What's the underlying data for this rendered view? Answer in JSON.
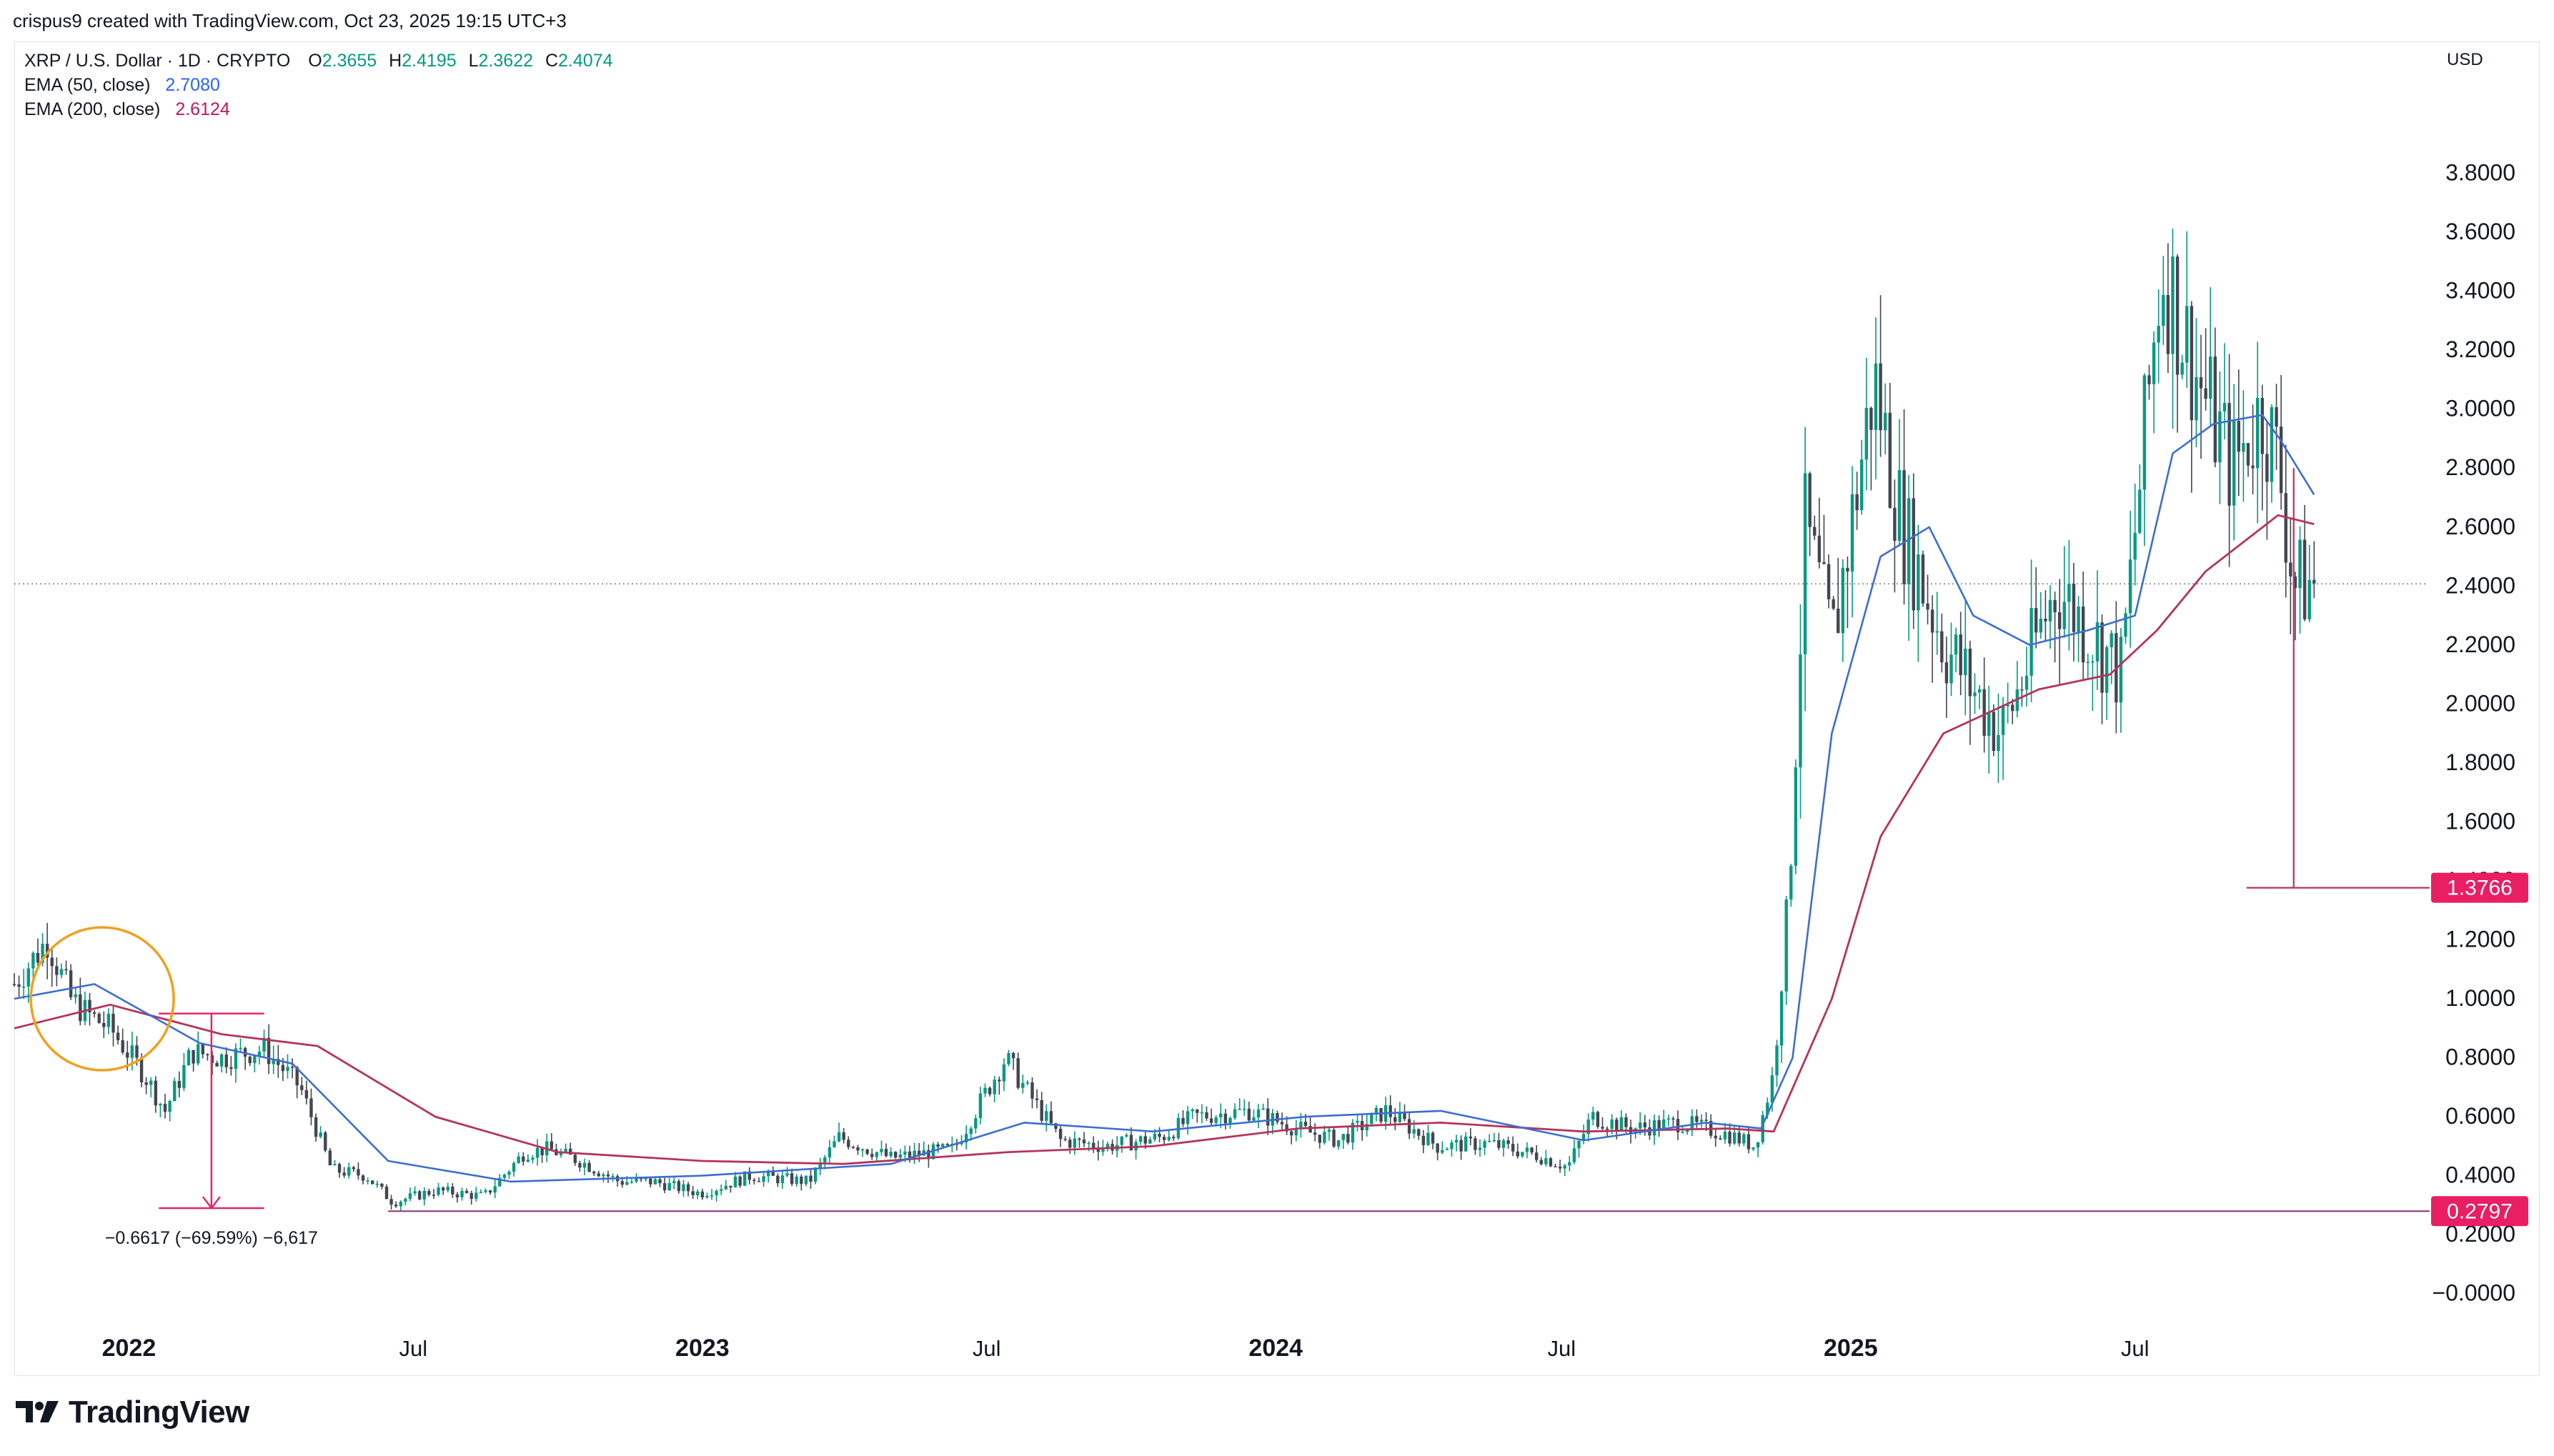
{
  "header": {
    "author_line": "crispus9 created with TradingView.com, Oct 23, 2025 19:15 UTC+3"
  },
  "legend": {
    "symbol": "XRP / U.S. Dollar · 1D · CRYPTO",
    "ohlc": [
      {
        "label": "O",
        "value": "2.3655"
      },
      {
        "label": "H",
        "value": "2.4195"
      },
      {
        "label": "L",
        "value": "2.3622"
      },
      {
        "label": "C",
        "value": "2.4074"
      }
    ],
    "ema50": {
      "label": "EMA (50, close)",
      "value": "2.7080",
      "color": "#2962ff"
    },
    "ema200": {
      "label": "EMA (200, close)",
      "value": "2.6124",
      "color": "#c2185b"
    }
  },
  "currency": "USD",
  "footer": {
    "brand": "TradingView"
  },
  "colors": {
    "up": "#089981",
    "down": "#434651",
    "candle_body": "#4a4a4a",
    "ema50": "#3d6ecf",
    "ema200": "#b5345a",
    "marker": "#e91e63",
    "circle": "#f0a020"
  },
  "chart_data": {
    "type": "line",
    "title": "XRP / U.S. Dollar · 1D · CRYPTO",
    "y_axis": {
      "ticks": [
        "3.8000",
        "3.6000",
        "3.4000",
        "3.2000",
        "3.0000",
        "2.8000",
        "2.6000",
        "2.4000",
        "2.2000",
        "2.0000",
        "1.8000",
        "1.6000",
        "1.4000",
        "1.2000",
        "1.0000",
        "0.8000",
        "0.6000",
        "0.4000",
        "0.2000",
        "−0.0000"
      ],
      "range": [
        -0.1,
        4.0
      ],
      "side": "right"
    },
    "x_axis": {
      "ticks": [
        {
          "label": "2022",
          "date": "2022-01-01",
          "bold": true
        },
        {
          "label": "Jul",
          "date": "2022-07-01",
          "bold": false
        },
        {
          "label": "2023",
          "date": "2023-01-01",
          "bold": true
        },
        {
          "label": "Jul",
          "date": "2023-07-01",
          "bold": false
        },
        {
          "label": "2024",
          "date": "2024-01-01",
          "bold": true
        },
        {
          "label": "Jul",
          "date": "2024-07-01",
          "bold": false
        },
        {
          "label": "2025",
          "date": "2025-01-01",
          "bold": true
        },
        {
          "label": "Jul",
          "date": "2025-07-01",
          "bold": false
        }
      ],
      "range": [
        "2021-10-20",
        "2025-12-31"
      ]
    },
    "series": [
      {
        "name": "XRP / U.S. Dollar",
        "style": "candles",
        "x": [
          "2021-10-20",
          "2021-11-10",
          "2021-11-25",
          "2021-12-05",
          "2021-12-20",
          "2022-01-10",
          "2022-01-24",
          "2022-02-10",
          "2022-03-01",
          "2022-03-28",
          "2022-04-20",
          "2022-05-10",
          "2022-06-01",
          "2022-06-18",
          "2022-07-15",
          "2022-08-15",
          "2022-09-10",
          "2022-09-25",
          "2022-10-15",
          "2022-11-09",
          "2022-12-01",
          "2022-12-31",
          "2023-02-01",
          "2023-03-10",
          "2023-03-29",
          "2023-05-01",
          "2023-06-10",
          "2023-07-13",
          "2023-07-25",
          "2023-08-17",
          "2023-09-15",
          "2023-10-20",
          "2023-11-10",
          "2023-12-15",
          "2024-01-20",
          "2024-02-10",
          "2024-03-11",
          "2024-04-13",
          "2024-05-15",
          "2024-06-15",
          "2024-07-05",
          "2024-07-20",
          "2024-08-15",
          "2024-09-15",
          "2024-10-15",
          "2024-11-01",
          "2024-11-13",
          "2024-11-23",
          "2024-12-03",
          "2024-12-20",
          "2025-01-16",
          "2025-02-03",
          "2025-03-02",
          "2025-04-07",
          "2025-05-12",
          "2025-06-22",
          "2025-07-18",
          "2025-08-10",
          "2025-09-01",
          "2025-09-20",
          "2025-10-01",
          "2025-10-10",
          "2025-10-23"
        ],
        "values": [
          1.05,
          1.2,
          1.0,
          0.95,
          0.9,
          0.75,
          0.62,
          0.82,
          0.8,
          0.83,
          0.7,
          0.42,
          0.4,
          0.31,
          0.35,
          0.33,
          0.48,
          0.49,
          0.45,
          0.38,
          0.38,
          0.34,
          0.4,
          0.38,
          0.53,
          0.46,
          0.49,
          0.8,
          0.7,
          0.52,
          0.5,
          0.53,
          0.6,
          0.62,
          0.55,
          0.52,
          0.62,
          0.5,
          0.51,
          0.47,
          0.43,
          0.6,
          0.56,
          0.58,
          0.54,
          0.5,
          0.75,
          1.4,
          2.6,
          2.2,
          3.1,
          2.6,
          2.2,
          1.9,
          2.4,
          2.1,
          3.5,
          3.1,
          2.8,
          3.0,
          2.8,
          2.4,
          2.41
        ]
      },
      {
        "name": "EMA (50, close)",
        "x": [
          "2021-10-20",
          "2021-12-10",
          "2022-02-15",
          "2022-04-15",
          "2022-06-15",
          "2022-09-01",
          "2022-12-31",
          "2023-05-01",
          "2023-07-25",
          "2023-10-15",
          "2024-01-20",
          "2024-04-15",
          "2024-07-15",
          "2024-10-01",
          "2024-11-05",
          "2024-11-25",
          "2024-12-20",
          "2025-01-20",
          "2025-02-20",
          "2025-03-20",
          "2025-04-25",
          "2025-06-01",
          "2025-07-01",
          "2025-07-25",
          "2025-08-20",
          "2025-09-20",
          "2025-10-01",
          "2025-10-23"
        ],
        "values": [
          1.0,
          1.05,
          0.85,
          0.78,
          0.45,
          0.38,
          0.4,
          0.44,
          0.58,
          0.55,
          0.6,
          0.62,
          0.52,
          0.58,
          0.56,
          0.8,
          1.9,
          2.5,
          2.6,
          2.3,
          2.2,
          2.25,
          2.3,
          2.85,
          2.95,
          2.98,
          2.9,
          2.71
        ]
      },
      {
        "name": "EMA (200, close)",
        "x": [
          "2021-10-20",
          "2021-12-20",
          "2022-03-01",
          "2022-05-01",
          "2022-07-15",
          "2022-10-01",
          "2023-01-01",
          "2023-04-01",
          "2023-07-15",
          "2023-10-15",
          "2024-01-15",
          "2024-04-15",
          "2024-07-15",
          "2024-10-15",
          "2024-11-13",
          "2024-12-20",
          "2025-01-20",
          "2025-03-01",
          "2025-05-01",
          "2025-06-15",
          "2025-07-15",
          "2025-08-15",
          "2025-09-30",
          "2025-10-23"
        ],
        "values": [
          0.9,
          0.98,
          0.88,
          0.84,
          0.6,
          0.48,
          0.45,
          0.44,
          0.48,
          0.5,
          0.56,
          0.58,
          0.55,
          0.56,
          0.55,
          1.0,
          1.55,
          1.9,
          2.05,
          2.1,
          2.25,
          2.45,
          2.64,
          2.61
        ]
      }
    ],
    "annotations": [
      {
        "type": "horizontal_line",
        "value": 0.2797,
        "label": "0.2797",
        "from": "2022-06-15"
      },
      {
        "type": "horizontal_line",
        "value": 1.3766,
        "label": "1.3766",
        "from": "2025-09-10"
      },
      {
        "type": "vertical_line",
        "date": "2025-10-10",
        "from": 1.3766,
        "to": 2.8
      },
      {
        "type": "measure",
        "from_date": "2022-01-20",
        "to_date": "2022-03-28",
        "from_value": 0.95,
        "to_value": 0.29,
        "label": "−0.6617 (−69.59%) −6,617"
      },
      {
        "type": "circle",
        "date": "2021-12-15",
        "value": 1.0,
        "note": "orange circle around price top"
      }
    ],
    "last_price": 2.4074,
    "grid": false,
    "legend_position": "top-left"
  }
}
